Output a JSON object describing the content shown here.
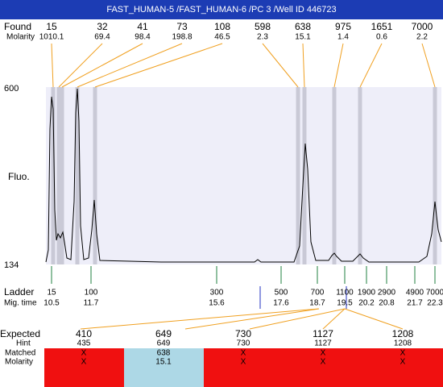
{
  "header": {
    "title": "FAST_HUMAN-5 /FAST_HUMAN-6 /PC 3 /Well ID 446723"
  },
  "found": {
    "label": "Found",
    "molarity_label": "Molarity",
    "peaks": [
      {
        "size": 15,
        "molarity": 1010.1
      },
      {
        "size": 32,
        "molarity": 69.4
      },
      {
        "size": 41,
        "molarity": 98.4
      },
      {
        "size": 73,
        "molarity": 198.8
      },
      {
        "size": 108,
        "molarity": 46.5
      },
      {
        "size": 598,
        "molarity": 2.3
      },
      {
        "size": 638,
        "molarity": 15.1
      },
      {
        "size": 975,
        "molarity": 1.4
      },
      {
        "size": 1651,
        "molarity": 0.6
      },
      {
        "size": 7000,
        "molarity": 2.2
      }
    ]
  },
  "fluo": {
    "label": "Fluo.",
    "top": 600,
    "bottom": 134
  },
  "ladder": {
    "label": "Ladder",
    "mig_label": "Mig. time",
    "markers": [
      {
        "size": 15,
        "time": 10.5
      },
      {
        "size": 100,
        "time": 11.7
      },
      {
        "size": 300,
        "time": 15.6
      },
      {
        "size": 500,
        "time": 17.6
      },
      {
        "size": 700,
        "time": 18.7
      },
      {
        "size": 1100,
        "time": 19.5
      },
      {
        "size": 1900,
        "time": 20.2
      },
      {
        "size": 2900,
        "time": 20.8
      },
      {
        "size": 4900,
        "time": 21.7
      },
      {
        "size": 7000,
        "time": 22.3
      }
    ]
  },
  "expected": {
    "label": "Expected",
    "hint_label": "Hint",
    "matched_label": "Matched",
    "molarity_label": "Molarity",
    "rows": [
      {
        "expected": 410,
        "hint": 435,
        "matched": "X",
        "molarity": "X"
      },
      {
        "expected": 649,
        "hint": 649,
        "matched": 638,
        "molarity": 15.1
      },
      {
        "expected": 730,
        "hint": 730,
        "matched": "X",
        "molarity": "X"
      },
      {
        "expected": 1127,
        "hint": 1127,
        "matched": "X",
        "molarity": "X"
      },
      {
        "expected": 1208,
        "hint": 1208,
        "matched": "X",
        "molarity": "X"
      }
    ]
  }
}
